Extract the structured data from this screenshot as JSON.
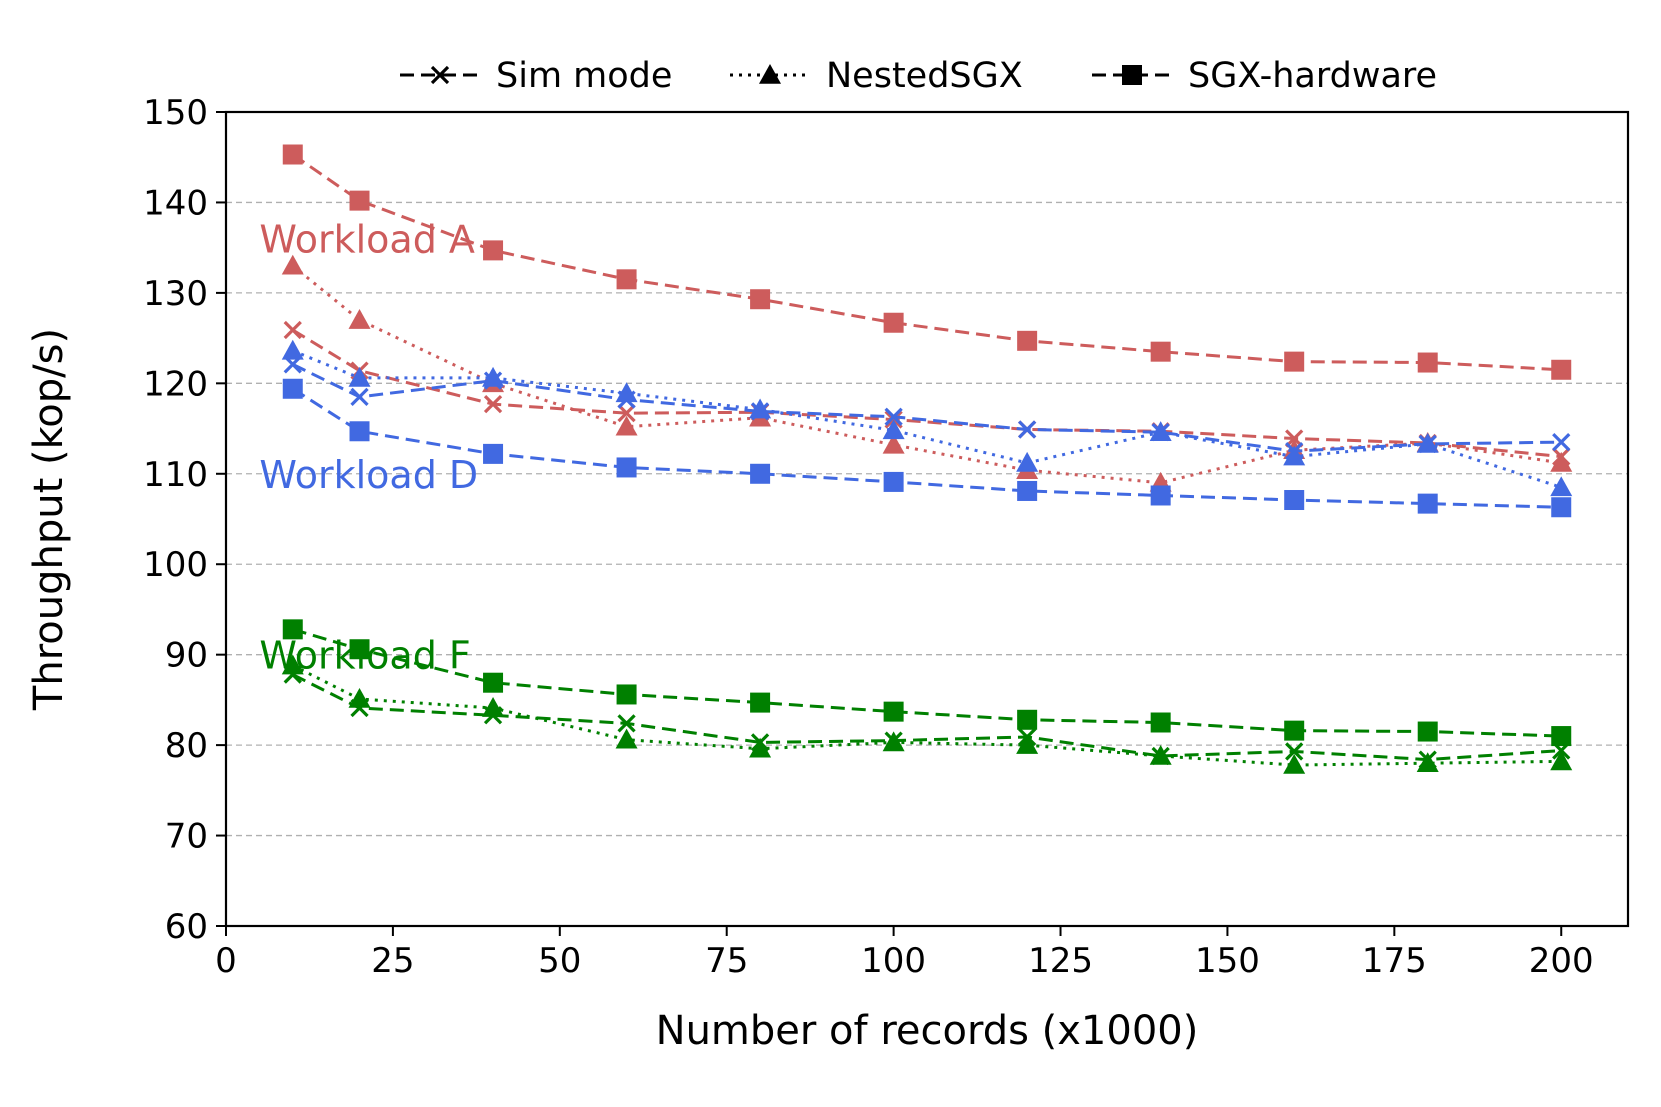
{
  "chart_data": {
    "type": "line",
    "xlabel": "Number of records (x1000)",
    "ylabel": "Throughput (kop/s)",
    "xlim": [
      0,
      210
    ],
    "ylim": [
      60,
      150
    ],
    "xticks": [
      "0",
      "25",
      "50",
      "75",
      "100",
      "125",
      "150",
      "175",
      "200"
    ],
    "yticks": [
      "60",
      "70",
      "80",
      "90",
      "100",
      "110",
      "120",
      "130",
      "140",
      "150"
    ],
    "grid": "horizontal dashed",
    "legend": {
      "placement": "top-center, above plot",
      "entries": [
        {
          "label": "Sim mode",
          "marker": "x",
          "linestyle": "dashed"
        },
        {
          "label": "NestedSGX",
          "marker": "triangle",
          "linestyle": "dotted"
        },
        {
          "label": "SGX-hardware",
          "marker": "square",
          "linestyle": "dashed"
        }
      ]
    },
    "x": [
      10,
      20,
      40,
      60,
      80,
      100,
      120,
      140,
      160,
      180,
      200
    ],
    "workloads": [
      {
        "name": "Workload A",
        "color": "#cd5c5c",
        "series": [
          {
            "mode": "Sim mode",
            "values": [
              125.9,
              121.4,
              117.7,
              116.7,
              116.8,
              116.0,
              114.9,
              114.7,
              113.9,
              113.4,
              111.9
            ]
          },
          {
            "mode": "NestedSGX",
            "values": [
              133.0,
              127.0,
              120.0,
              115.2,
              116.2,
              113.2,
              110.4,
              109.0,
              112.6,
              113.4,
              111.2
            ]
          },
          {
            "mode": "SGX-hardware",
            "values": [
              145.3,
              140.2,
              134.7,
              131.5,
              129.3,
              126.7,
              124.7,
              123.5,
              122.4,
              122.3,
              121.5
            ]
          }
        ]
      },
      {
        "name": "Workload D",
        "color": "#4169e1",
        "series": [
          {
            "mode": "Sim mode",
            "values": [
              122.1,
              118.5,
              120.3,
              118.2,
              116.9,
              116.3,
              114.9,
              114.6,
              112.5,
              113.3,
              113.5
            ]
          },
          {
            "mode": "NestedSGX",
            "values": [
              123.6,
              120.6,
              120.6,
              118.9,
              117.1,
              114.8,
              111.2,
              114.6,
              111.9,
              113.3,
              108.5
            ]
          },
          {
            "mode": "SGX-hardware",
            "values": [
              119.4,
              114.7,
              112.2,
              110.7,
              110.0,
              109.1,
              108.1,
              107.6,
              107.1,
              106.7,
              106.3
            ]
          }
        ]
      },
      {
        "name": "Workload F",
        "color": "#008000",
        "series": [
          {
            "mode": "Sim mode",
            "values": [
              87.8,
              84.1,
              83.3,
              82.4,
              80.3,
              80.5,
              80.9,
              78.8,
              79.3,
              78.4,
              79.4
            ]
          },
          {
            "mode": "NestedSGX",
            "values": [
              88.8,
              85.1,
              84.1,
              80.6,
              79.6,
              80.3,
              80.0,
              78.8,
              77.8,
              78.0,
              78.2
            ]
          },
          {
            "mode": "SGX-hardware",
            "values": [
              92.8,
              90.6,
              86.9,
              85.6,
              84.7,
              83.7,
              82.8,
              82.5,
              81.6,
              81.5,
              81.0
            ]
          }
        ]
      }
    ]
  }
}
